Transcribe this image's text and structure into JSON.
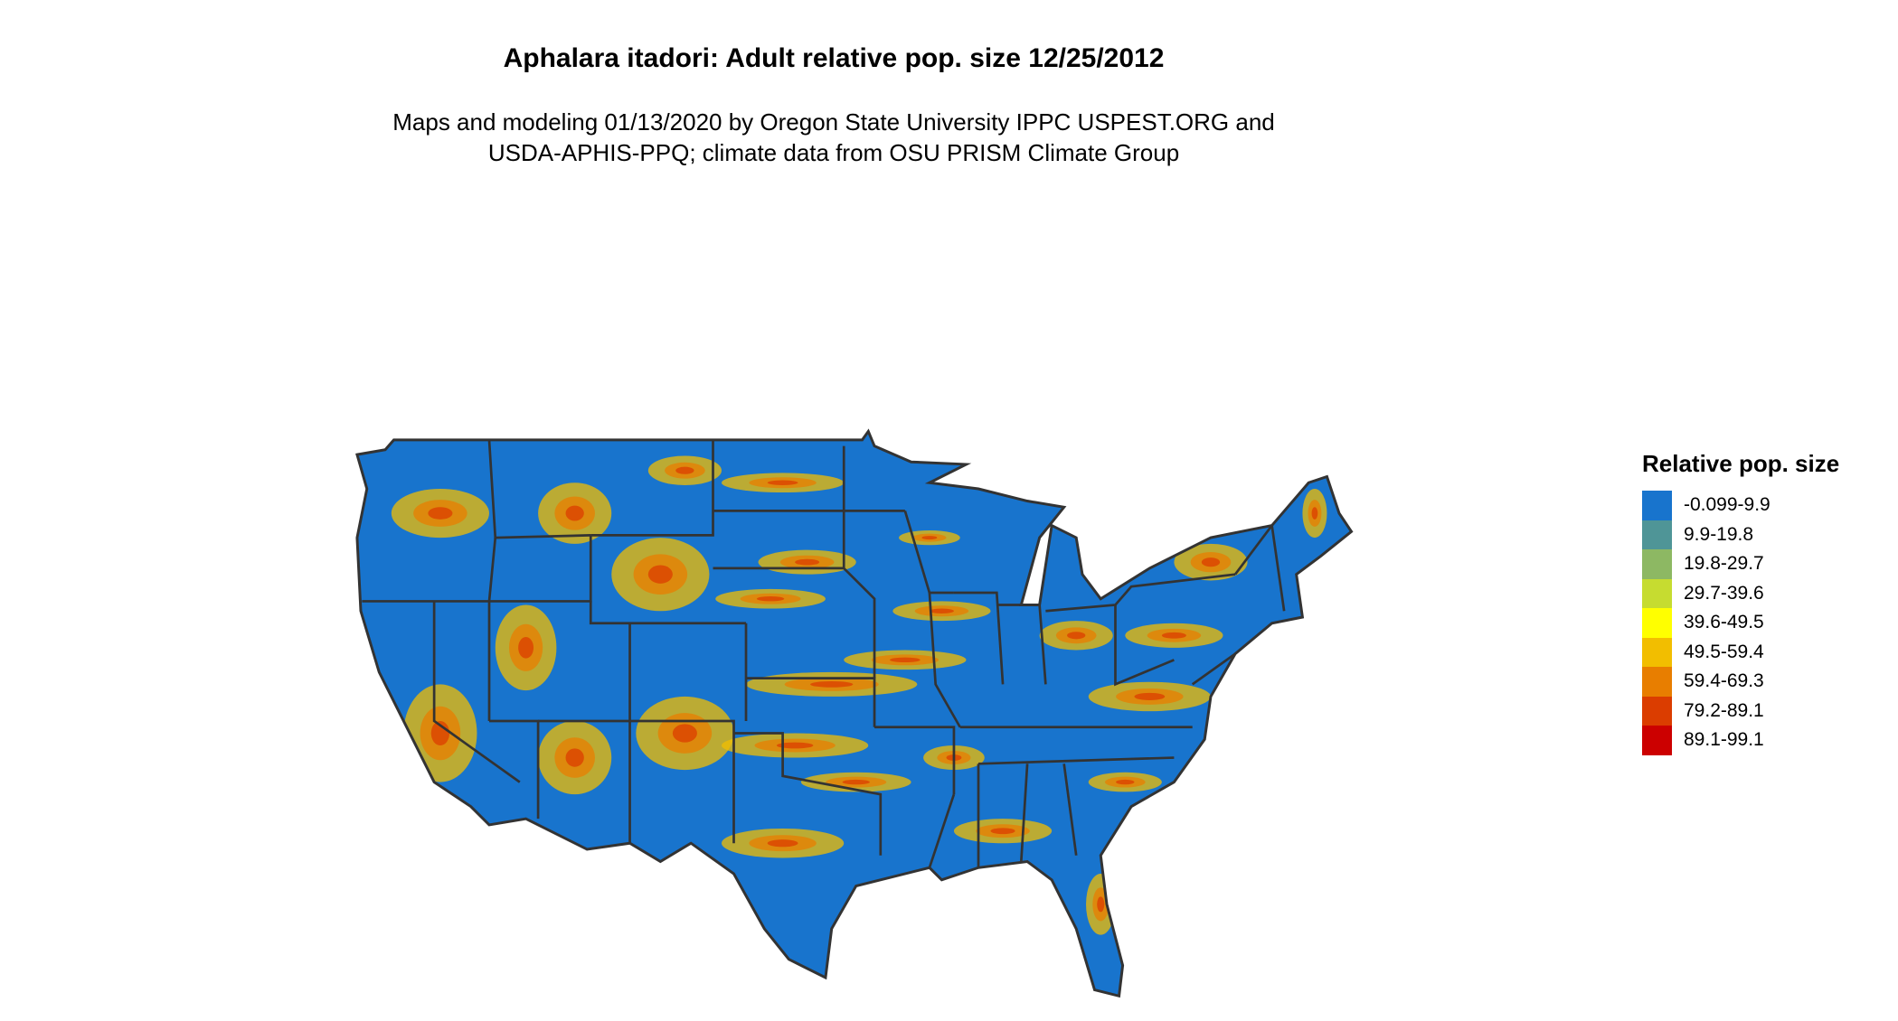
{
  "title": "Aphalara itadori: Adult relative pop. size 12/25/2012",
  "subtitle_line1": "Maps and modeling 01/13/2020 by Oregon State University IPPC USPEST.ORG and",
  "subtitle_line2": "USDA-APHIS-PPQ; climate data from OSU PRISM Climate Group",
  "map": {
    "region": "Contiguous United States",
    "dominant_class": "-0.099-9.9",
    "border_color": "#333333"
  },
  "legend": {
    "title": "Relative pop. size",
    "items": [
      {
        "label": "-0.099-9.9",
        "color": "#1874CD"
      },
      {
        "label": "9.9-19.8",
        "color": "#4F9597"
      },
      {
        "label": "19.8-29.7",
        "color": "#8DB863"
      },
      {
        "label": "29.7-39.6",
        "color": "#C6DC30"
      },
      {
        "label": "39.6-49.5",
        "color": "#FFFF00"
      },
      {
        "label": "49.5-59.4",
        "color": "#F2BE00"
      },
      {
        "label": "59.4-69.3",
        "color": "#E87E00"
      },
      {
        "label": "79.2-89.1",
        "color": "#DB3D00"
      },
      {
        "label": "89.1-99.1",
        "color": "#CC0000"
      }
    ]
  }
}
